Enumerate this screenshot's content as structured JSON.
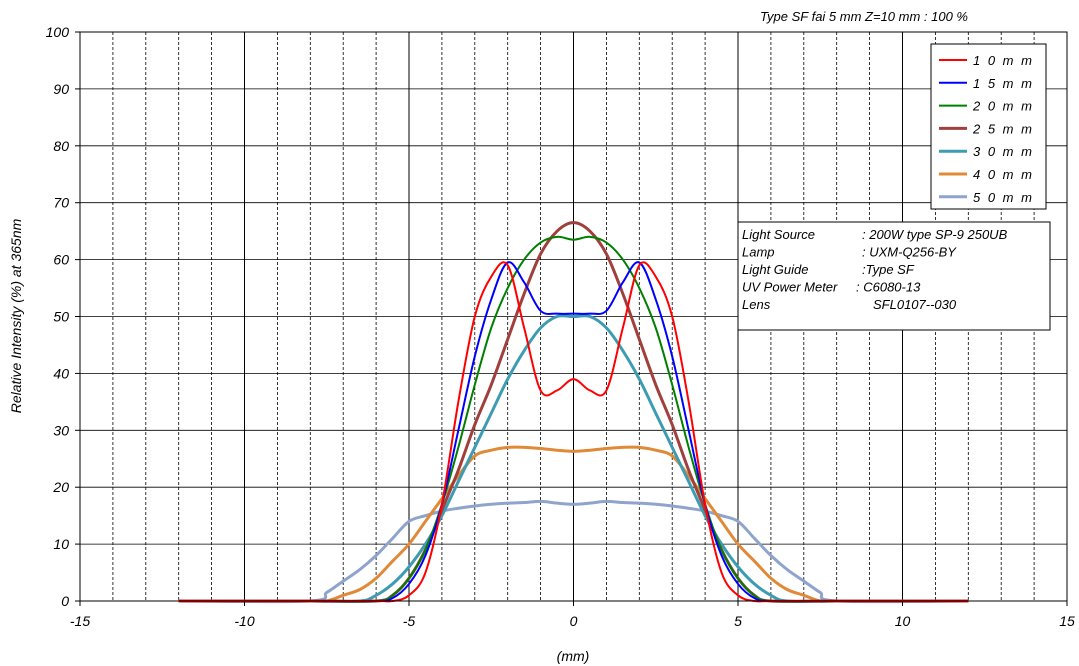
{
  "chart_data": {
    "type": "line",
    "title": "Type SF fai 5 mm Z=10 mm : 100 %",
    "xlabel": "(mm)",
    "ylabel": "Relative Intensity (%)  at 365nm",
    "xlim": [
      -15,
      15
    ],
    "ylim": [
      0,
      100
    ],
    "x_ticks": [
      "-15",
      "-10",
      "-5",
      "0",
      "5",
      "10",
      "15"
    ],
    "y_ticks": [
      "0",
      "10",
      "20",
      "30",
      "40",
      "50",
      "60",
      "70",
      "80",
      "90",
      "100"
    ],
    "grid": true,
    "legend_position": "top-right",
    "series": [
      {
        "name": "1 0 m m",
        "color": "#ff0000",
        "x": [
          -12,
          -8,
          -6,
          -5.5,
          -5,
          -4.5,
          -4,
          -3.5,
          -3,
          -2.5,
          -2,
          -1.5,
          -1,
          -0.5,
          0,
          0.5,
          1,
          1.5,
          2,
          2.5,
          3,
          3.5,
          4,
          4.5,
          5,
          5.5,
          6,
          8,
          12
        ],
        "y": [
          0,
          0,
          0,
          0,
          1,
          5,
          17,
          35,
          50,
          57,
          59,
          48,
          37,
          37,
          39,
          37,
          37,
          48,
          59,
          57,
          50,
          35,
          17,
          5,
          1,
          0,
          0,
          0,
          0
        ]
      },
      {
        "name": "1 5 m m",
        "color": "#0000ff",
        "x": [
          -12,
          -8,
          -6,
          -5.5,
          -5,
          -4.5,
          -4,
          -3.5,
          -3,
          -2.5,
          -2,
          -1.5,
          -1,
          -0.5,
          0,
          0.5,
          1,
          1.5,
          2,
          2.5,
          3,
          3.5,
          4,
          4.5,
          5,
          5.5,
          6,
          8,
          12
        ],
        "y": [
          0,
          0,
          0,
          0.5,
          3,
          8,
          17,
          30,
          43,
          53,
          59.5,
          56,
          51,
          50.5,
          50.5,
          50.5,
          51,
          56,
          59.5,
          53,
          43,
          30,
          17,
          8,
          3,
          0.5,
          0,
          0,
          0
        ]
      },
      {
        "name": "2 0 m m",
        "color": "#008000",
        "x": [
          -12,
          -8,
          -6,
          -5.5,
          -5,
          -4.5,
          -4,
          -3.5,
          -3,
          -2.5,
          -2,
          -1.5,
          -1,
          -0.5,
          0,
          0.5,
          1,
          1.5,
          2,
          2.5,
          3,
          3.5,
          4,
          4.5,
          5,
          5.5,
          6,
          8,
          12
        ],
        "y": [
          0,
          0,
          0,
          1,
          4,
          9,
          17,
          27,
          38,
          48,
          55,
          60,
          63,
          64,
          63.5,
          64,
          63,
          60,
          55,
          48,
          38,
          27,
          17,
          9,
          4,
          1,
          0,
          0,
          0
        ]
      },
      {
        "name": "2 5 m m",
        "color": "#a0403c",
        "x": [
          -12,
          -8,
          -6,
          -5.5,
          -5,
          -4.5,
          -4,
          -3.5,
          -3,
          -2.5,
          -2,
          -1.5,
          -1,
          -0.5,
          0,
          0.5,
          1,
          1.5,
          2,
          2.5,
          3,
          3.5,
          4,
          4.5,
          5,
          5.5,
          6,
          8,
          12
        ],
        "y": [
          0,
          0,
          0,
          1,
          4,
          9,
          16,
          23,
          31,
          38,
          46,
          54,
          61,
          65,
          66.5,
          65,
          61,
          54,
          46,
          38,
          31,
          23,
          16,
          9,
          4,
          1,
          0,
          0,
          0
        ]
      },
      {
        "name": "3 0 m m",
        "color": "#3d9cb2",
        "x": [
          -12,
          -8,
          -6.5,
          -6,
          -5.5,
          -5,
          -4.5,
          -4,
          -3.5,
          -3,
          -2.5,
          -2,
          -1.5,
          -1,
          -0.5,
          0,
          0.5,
          1,
          1.5,
          2,
          2.5,
          3,
          3.5,
          4,
          4.5,
          5,
          5.5,
          6,
          6.5,
          8,
          12
        ],
        "y": [
          0,
          0,
          0,
          1,
          3,
          6,
          10,
          15,
          21,
          27,
          33,
          39,
          44,
          48,
          50,
          50,
          50,
          48,
          44,
          39,
          33,
          27,
          21,
          15,
          10,
          6,
          3,
          1,
          0,
          0,
          0
        ]
      },
      {
        "name": "4 0 m m",
        "color": "#e08a38",
        "x": [
          -12,
          -8,
          -7.5,
          -7,
          -6.5,
          -6,
          -5.5,
          -5,
          -4.5,
          -4,
          -3.5,
          -3,
          -2.5,
          -2,
          -1.5,
          -1,
          -0.5,
          0,
          0.5,
          1,
          1.5,
          2,
          2.5,
          3,
          3.5,
          4,
          4.5,
          5,
          5.5,
          6,
          6.5,
          7,
          7.5,
          8,
          12
        ],
        "y": [
          0,
          0,
          0,
          1,
          2,
          4,
          7,
          10,
          14,
          18,
          22,
          25.5,
          26.5,
          27,
          27,
          26.8,
          26.5,
          26.3,
          26.5,
          26.8,
          27,
          27,
          26.5,
          25.5,
          22,
          18,
          14,
          10,
          7,
          4,
          2,
          1,
          0,
          0,
          0
        ]
      },
      {
        "name": "5 0 m m",
        "color": "#8fa4cc",
        "x": [
          -12,
          -8,
          -7.5,
          -7,
          -6.5,
          -6,
          -5.5,
          -5,
          -4.5,
          -4,
          -3.5,
          -3,
          -2.5,
          -2,
          -1.5,
          -1,
          -0.5,
          0,
          0.5,
          1,
          1.5,
          2,
          2.5,
          3,
          3.5,
          4,
          4.5,
          5,
          5.5,
          6,
          6.5,
          7,
          7.5,
          8,
          12
        ],
        "y": [
          0,
          0,
          1.5,
          3.5,
          5.5,
          8,
          11,
          14,
          15,
          15.8,
          16.3,
          16.7,
          17,
          17.2,
          17.3,
          17.5,
          17.2,
          17,
          17.2,
          17.5,
          17.3,
          17.2,
          17,
          16.7,
          16.3,
          15.8,
          15,
          14,
          11,
          8,
          5.5,
          3.5,
          1.5,
          0,
          0
        ]
      }
    ],
    "info_box": [
      {
        "label": "Light Source",
        "value": ": 200W type  SP-9 250UB"
      },
      {
        "label": "Lamp",
        "value": ": UXM-Q256-BY"
      },
      {
        "label": "Light Guide",
        "value": ":Type SF"
      },
      {
        "label": "UV Power Meter",
        "value": ": C6080-13"
      },
      {
        "label": "Lens",
        "value": "SFL0107--030"
      }
    ]
  }
}
